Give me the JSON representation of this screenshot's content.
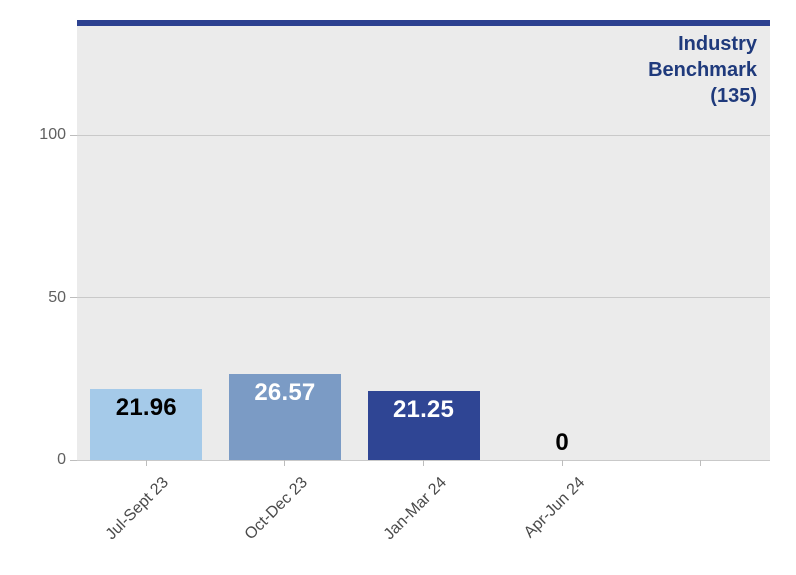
{
  "chart_data": {
    "type": "bar",
    "title": "",
    "categories": [
      "Jul-Sept 23",
      "Oct-Dec 23",
      "Jan-Mar 24",
      "Apr-Jun 24"
    ],
    "values": [
      21.96,
      26.57,
      21.25,
      0
    ],
    "value_labels": [
      "21.96",
      "26.57",
      "21.25",
      "0"
    ],
    "bar_colors": [
      "#a5cae9",
      "#7b9bc5",
      "#2f4594",
      null
    ],
    "value_label_colors": [
      "#000000",
      "#ffffff",
      "#ffffff",
      "#000000"
    ],
    "y_ticks": [
      0,
      50,
      100
    ],
    "y_tick_labels": [
      "0",
      "50",
      "100"
    ],
    "ylim": [
      0,
      133
    ],
    "grid": "horizontal",
    "legend": "none",
    "benchmark": {
      "value": 135,
      "label_lines": [
        "Industry",
        "Benchmark",
        "(135)"
      ]
    },
    "colors": {
      "benchmark_line": "#2c4190",
      "benchmark_text": "#1f3a7c",
      "plot_bg": "#ebebeb",
      "gridline": "#c9c9c9",
      "axis_tick": "#bdbdbd",
      "y_label_text": "#606060",
      "x_label_text": "#4a4a4a"
    }
  }
}
